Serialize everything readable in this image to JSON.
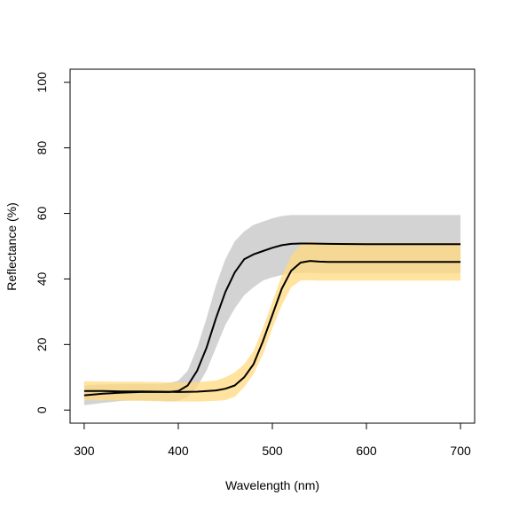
{
  "chart_data": {
    "type": "line",
    "title": "",
    "xlabel": "Wavelength (nm)",
    "ylabel": "Reflectance (%)",
    "xlim": [
      285,
      715
    ],
    "ylim": [
      -4,
      104
    ],
    "x_ticks": [
      300,
      400,
      500,
      600,
      700
    ],
    "y_ticks": [
      0,
      20,
      40,
      60,
      80,
      100
    ],
    "grid": false,
    "legend": "none",
    "series": [
      {
        "color_fill": "#d3d3d3",
        "color_line": "#000000",
        "x": [
          300,
          320,
          340,
          360,
          380,
          390,
          400,
          410,
          420,
          430,
          440,
          450,
          460,
          470,
          480,
          490,
          500,
          510,
          520,
          530,
          540,
          560,
          600,
          650,
          700
        ],
        "mean": [
          4.5,
          5.0,
          5.3,
          5.5,
          5.5,
          5.5,
          5.8,
          7.5,
          12.0,
          19.0,
          28.0,
          36.0,
          42.0,
          46.0,
          47.5,
          48.5,
          49.5,
          50.3,
          50.7,
          50.8,
          50.8,
          50.7,
          50.6,
          50.6,
          50.6
        ],
        "lower": [
          1.5,
          2.2,
          2.8,
          3.0,
          2.8,
          2.6,
          2.8,
          4.0,
          7.0,
          12.0,
          19.0,
          26.0,
          31.0,
          35.0,
          37.5,
          39.5,
          40.5,
          41.2,
          41.7,
          41.8,
          41.8,
          41.7,
          41.7,
          41.7,
          41.7
        ],
        "upper": [
          7.5,
          7.8,
          7.9,
          8.0,
          8.0,
          8.2,
          9.0,
          12.0,
          19.0,
          28.0,
          38.0,
          46.0,
          51.5,
          54.5,
          56.5,
          57.5,
          58.5,
          59.2,
          59.5,
          59.5,
          59.5,
          59.5,
          59.5,
          59.5,
          59.5
        ]
      },
      {
        "color_fill": "#ffd97f",
        "color_line": "#000000",
        "x": [
          300,
          320,
          340,
          360,
          380,
          400,
          420,
          440,
          450,
          460,
          470,
          480,
          490,
          500,
          510,
          520,
          530,
          540,
          550,
          560,
          600,
          650,
          700
        ],
        "mean": [
          5.8,
          5.8,
          5.7,
          5.7,
          5.6,
          5.5,
          5.6,
          6.0,
          6.5,
          7.5,
          10.0,
          14.0,
          21.0,
          29.0,
          37.0,
          42.5,
          45.0,
          45.5,
          45.3,
          45.2,
          45.2,
          45.2,
          45.2
        ],
        "lower": [
          3.0,
          3.0,
          2.9,
          2.8,
          2.7,
          2.6,
          2.6,
          2.8,
          3.0,
          4.0,
          7.0,
          11.0,
          17.0,
          25.0,
          32.0,
          37.5,
          39.5,
          39.6,
          39.5,
          39.5,
          39.5,
          39.5,
          39.5
        ],
        "upper": [
          8.8,
          8.7,
          8.6,
          8.6,
          8.5,
          8.4,
          8.5,
          9.0,
          10.0,
          11.5,
          14.0,
          18.0,
          25.0,
          33.0,
          41.0,
          47.0,
          50.5,
          51.5,
          51.0,
          51.0,
          51.0,
          51.0,
          51.0
        ]
      }
    ]
  }
}
